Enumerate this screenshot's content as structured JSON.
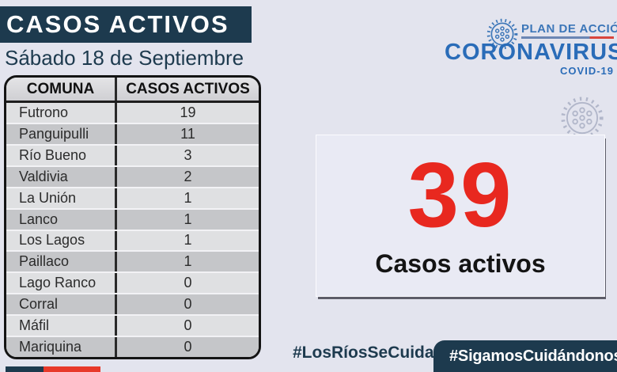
{
  "header": {
    "title": "CASOS ACTIVOS",
    "date": "Sábado 18 de Septiembre"
  },
  "brand": {
    "plan_label": "PLAN DE ACCIÓN",
    "name": "CORONAVIRUS",
    "sub_label": "COVID-19"
  },
  "table": {
    "headers": [
      "COMUNA",
      "CASOS ACTIVOS"
    ],
    "rows": [
      {
        "comuna": "Futrono",
        "casos": "19"
      },
      {
        "comuna": "Panguipulli",
        "casos": "11"
      },
      {
        "comuna": "Río Bueno",
        "casos": "3"
      },
      {
        "comuna": "Valdivia",
        "casos": "2"
      },
      {
        "comuna": "La Unión",
        "casos": "1"
      },
      {
        "comuna": "Lanco",
        "casos": "1"
      },
      {
        "comuna": "Los Lagos",
        "casos": "1"
      },
      {
        "comuna": "Paillaco",
        "casos": "1"
      },
      {
        "comuna": "Lago Ranco",
        "casos": "0"
      },
      {
        "comuna": "Corral",
        "casos": "0"
      },
      {
        "comuna": "Máfil",
        "casos": "0"
      },
      {
        "comuna": "Mariquina",
        "casos": "0"
      }
    ]
  },
  "summary": {
    "value": "39",
    "label": "Casos activos"
  },
  "footer": {
    "hashtag_left": "#LosRíosSeCuida",
    "hashtag_right": "#SigamosCuidándonos"
  },
  "colors": {
    "navy": "#1d3a4e",
    "brand_blue": "#2a6cb8",
    "accent_red": "#e8281f",
    "background": "#e3e4ee"
  },
  "chart_data": {
    "type": "table",
    "title": "CASOS ACTIVOS",
    "subtitle": "Sábado 18 de Septiembre",
    "columns": [
      "COMUNA",
      "CASOS ACTIVOS"
    ],
    "categories": [
      "Futrono",
      "Panguipulli",
      "Río Bueno",
      "Valdivia",
      "La Unión",
      "Lanco",
      "Los Lagos",
      "Paillaco",
      "Lago Ranco",
      "Corral",
      "Máfil",
      "Mariquina"
    ],
    "values": [
      19,
      11,
      3,
      2,
      1,
      1,
      1,
      1,
      0,
      0,
      0,
      0
    ],
    "total_active_cases": 39,
    "total_label": "Casos activos"
  }
}
